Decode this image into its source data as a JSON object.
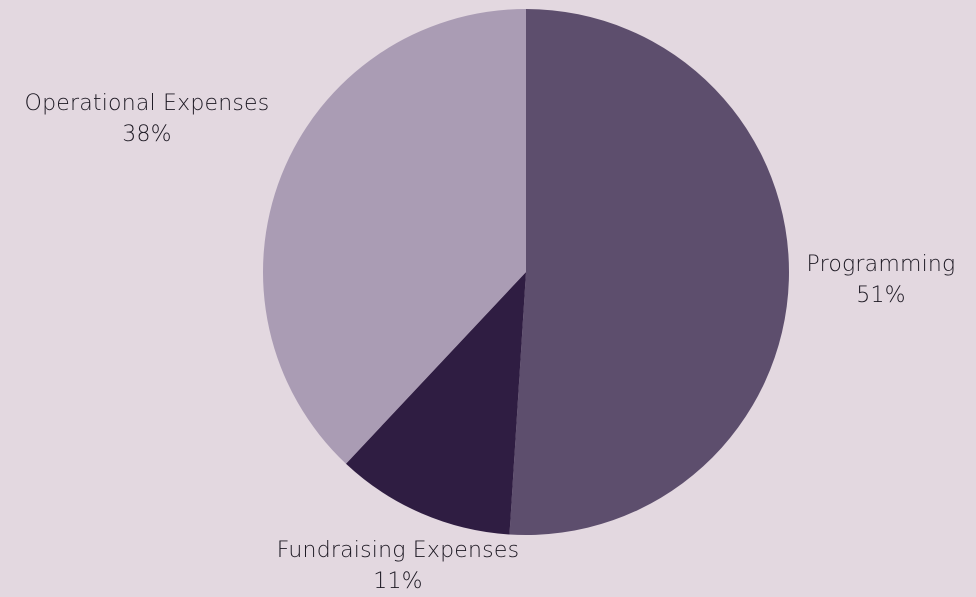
{
  "chart_data": {
    "type": "pie",
    "title": "",
    "start_angle_deg": 0,
    "direction": "clockwise",
    "slices": [
      {
        "label": "Programming",
        "value": 51,
        "value_label": "51%",
        "color": "#5d4e6d"
      },
      {
        "label": "Fundraising Expenses",
        "value": 11,
        "value_label": "11%",
        "color": "#2f1d42"
      },
      {
        "label": "Operational Expenses",
        "value": 38,
        "value_label": "38%",
        "color": "#aa9cb4"
      }
    ]
  },
  "theme": {
    "background": "#e3d8e0",
    "text_color": "#1c1822"
  }
}
